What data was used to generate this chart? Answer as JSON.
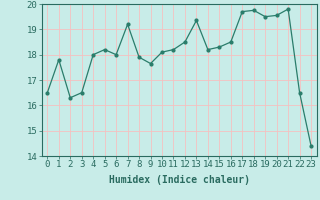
{
  "x": [
    0,
    1,
    2,
    3,
    4,
    5,
    6,
    7,
    8,
    9,
    10,
    11,
    12,
    13,
    14,
    15,
    16,
    17,
    18,
    19,
    20,
    21,
    22,
    23
  ],
  "y": [
    16.5,
    17.8,
    16.3,
    16.5,
    18.0,
    18.2,
    18.0,
    19.2,
    17.9,
    17.65,
    18.1,
    18.2,
    18.5,
    19.35,
    18.2,
    18.3,
    18.5,
    19.7,
    19.75,
    19.5,
    19.55,
    19.8,
    16.5,
    14.4
  ],
  "line_color": "#2a7d6b",
  "marker": "o",
  "marker_size": 2,
  "bg_color": "#c8ece8",
  "grid_color_major": "#f5c0c0",
  "grid_color_minor": "#f5c0c0",
  "xlabel": "Humidex (Indice chaleur)",
  "ylim": [
    14,
    20
  ],
  "xlim": [
    -0.5,
    23.5
  ],
  "yticks": [
    14,
    15,
    16,
    17,
    18,
    19,
    20
  ],
  "xticks": [
    0,
    1,
    2,
    3,
    4,
    5,
    6,
    7,
    8,
    9,
    10,
    11,
    12,
    13,
    14,
    15,
    16,
    17,
    18,
    19,
    20,
    21,
    22,
    23
  ],
  "xlabel_fontsize": 7,
  "tick_fontsize": 6.5,
  "tick_color": "#2a6b60",
  "spine_color": "#2a6b60"
}
